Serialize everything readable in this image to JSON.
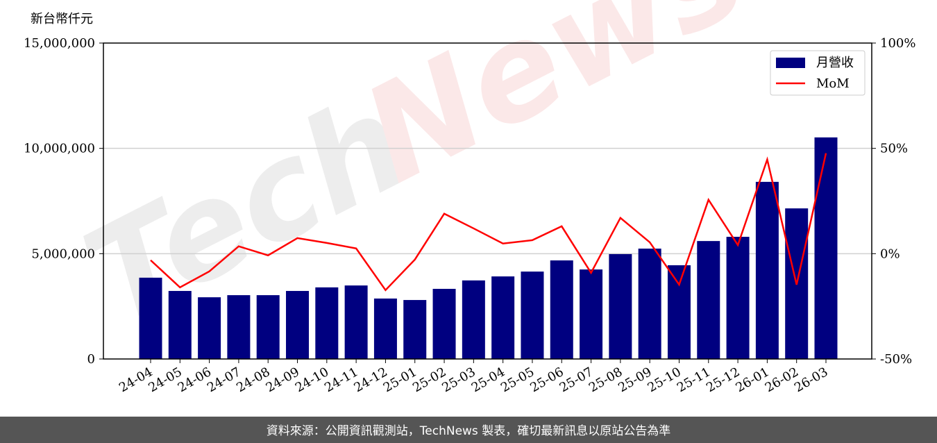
{
  "chart_data": {
    "type": "bar_line",
    "y_label": "新台幣仟元",
    "footer": "資料來源：公開資訊觀測站，TechNews 製表，確切最新訊息以原站公告為準",
    "watermark": [
      "Tech",
      "News"
    ],
    "categories": [
      "24-04",
      "24-05",
      "24-06",
      "24-07",
      "24-08",
      "24-09",
      "24-10",
      "24-11",
      "24-12",
      "25-01",
      "25-02",
      "25-03",
      "25-04",
      "25-05",
      "25-06",
      "25-07",
      "25-08",
      "25-09",
      "25-10",
      "25-11",
      "25-12",
      "26-01",
      "26-02",
      "26-03"
    ],
    "series": [
      {
        "name": "月營收",
        "type": "bar",
        "color": "#000080",
        "values": [
          3860000,
          3230000,
          2930000,
          3030000,
          3030000,
          3230000,
          3400000,
          3490000,
          2870000,
          2800000,
          3330000,
          3730000,
          3920000,
          4150000,
          4680000,
          4250000,
          4980000,
          5240000,
          4450000,
          5600000,
          5800000,
          8410000,
          7150000,
          10520000
        ]
      },
      {
        "name": "MoM",
        "type": "line",
        "color": "#ff0000",
        "axis": "y2",
        "values": [
          -3.1,
          -16,
          -8.4,
          3.5,
          -0.8,
          7.4,
          5.1,
          2.5,
          -17.3,
          -2.8,
          19.0,
          12.0,
          4.8,
          6.4,
          13.0,
          -9.1,
          17.0,
          5.4,
          -14.7,
          25.6,
          4.1,
          44.7,
          -14.7,
          47.7
        ]
      }
    ],
    "ylim": [
      0,
      15000000
    ],
    "yticks": [
      0,
      {
        "value": 5000000,
        "label": "5,000,000"
      },
      {
        "value": 10000000,
        "label": "10,000,000"
      },
      {
        "value": 15000000,
        "label": "15,000,000"
      }
    ],
    "y2lim": [
      -50,
      100
    ],
    "y2ticks": [
      {
        "value": -50,
        "label": "-50%"
      },
      {
        "value": 0,
        "label": "0%"
      },
      {
        "value": 50,
        "label": "50%"
      },
      {
        "value": 100,
        "label": "100%"
      }
    ],
    "grid": true,
    "legend": "upper right"
  }
}
